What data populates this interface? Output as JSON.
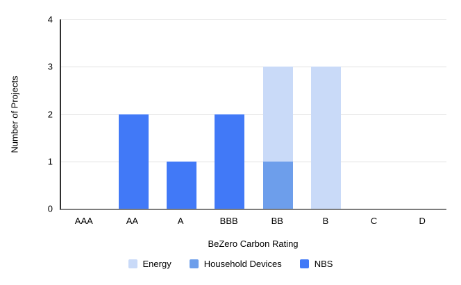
{
  "chart_data": {
    "type": "bar",
    "stacked": true,
    "title": "",
    "xlabel": "BeZero Carbon Rating",
    "ylabel": "Number of Projects",
    "categories": [
      "AAA",
      "AA",
      "A",
      "BBB",
      "BB",
      "B",
      "C",
      "D"
    ],
    "series": [
      {
        "name": "Energy",
        "color": "#c9daf8",
        "values": [
          0,
          0,
          0,
          0,
          2,
          3,
          0,
          0
        ]
      },
      {
        "name": "Household Devices",
        "color": "#6d9eeb",
        "values": [
          0,
          0,
          0,
          0,
          1,
          0,
          0,
          0
        ]
      },
      {
        "name": "NBS",
        "color": "#4179f7",
        "values": [
          0,
          2,
          1,
          2,
          0,
          0,
          0,
          0
        ]
      }
    ],
    "totals_by_category": [
      0,
      2,
      1,
      2,
      3,
      3,
      0,
      0
    ],
    "ylim": [
      0,
      4
    ],
    "yticks": [
      0,
      1,
      2,
      3,
      4
    ],
    "grid": true,
    "legend_position": "bottom"
  }
}
